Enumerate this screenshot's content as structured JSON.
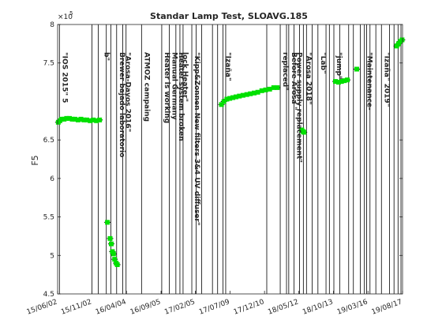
{
  "chart_data": {
    "type": "scatter",
    "title": "Standar Lamp Test, SLOAVG.185",
    "ylabel": "F5",
    "xlabel": "",
    "y_exponent_label": "×10",
    "y_exponent_power": "5",
    "ylim": [
      4.5,
      8.0
    ],
    "xlim": [
      "2015-06-02",
      "2019-08-17"
    ],
    "yticks": [
      {
        "value": 4.5,
        "label": "4.5"
      },
      {
        "value": 5.0,
        "label": "5"
      },
      {
        "value": 5.5,
        "label": "5.5"
      },
      {
        "value": 6.0,
        "label": "6"
      },
      {
        "value": 6.5,
        "label": "6.5"
      },
      {
        "value": 7.5,
        "label": "7.5"
      },
      {
        "value": 8.0,
        "label": "8"
      }
    ],
    "xticks": [
      {
        "date": "2015-06-02",
        "label": "15/06/02"
      },
      {
        "date": "2015-11-02",
        "label": "15/11/02"
      },
      {
        "date": "2016-04-04",
        "label": "16/04/04"
      },
      {
        "date": "2016-09-05",
        "label": "16/09/05"
      },
      {
        "date": "2017-02-05",
        "label": "17/02/05"
      },
      {
        "date": "2017-07-09",
        "label": "17/07/09"
      },
      {
        "date": "2017-12-10",
        "label": "17/12/10"
      },
      {
        "date": "2018-05-12",
        "label": "18/05/12"
      },
      {
        "date": "2018-10-13",
        "label": "18/10/13"
      },
      {
        "date": "2019-03-16",
        "label": "19/03/16"
      },
      {
        "date": "2019-08-17",
        "label": "19/08/17"
      }
    ],
    "grid": false,
    "series": [
      {
        "color": "#00e000",
        "error_color": "#000000",
        "points": [
          {
            "x": "2015-06-05",
            "y": 6.73
          },
          {
            "x": "2015-06-12",
            "y": 6.75
          },
          {
            "x": "2015-06-20",
            "y": 6.77
          },
          {
            "x": "2015-07-01",
            "y": 6.77
          },
          {
            "x": "2015-07-12",
            "y": 6.78
          },
          {
            "x": "2015-07-25",
            "y": 6.78
          },
          {
            "x": "2015-08-06",
            "y": 6.77
          },
          {
            "x": "2015-08-18",
            "y": 6.77
          },
          {
            "x": "2015-09-01",
            "y": 6.76
          },
          {
            "x": "2015-09-14",
            "y": 6.77
          },
          {
            "x": "2015-09-27",
            "y": 6.76
          },
          {
            "x": "2015-10-10",
            "y": 6.76
          },
          {
            "x": "2015-10-25",
            "y": 6.75
          },
          {
            "x": "2015-11-08",
            "y": 6.76
          },
          {
            "x": "2015-11-22",
            "y": 6.75
          },
          {
            "x": "2015-12-06",
            "y": 6.76
          },
          {
            "x": "2016-01-10",
            "y": 5.43
          },
          {
            "x": "2016-01-22",
            "y": 5.22
          },
          {
            "x": "2016-01-27",
            "y": 5.15
          },
          {
            "x": "2016-02-01",
            "y": 5.05
          },
          {
            "x": "2016-02-06",
            "y": 5.02
          },
          {
            "x": "2016-02-11",
            "y": 4.95
          },
          {
            "x": "2016-02-18",
            "y": 4.9
          },
          {
            "x": "2016-02-23",
            "y": 4.88
          },
          {
            "x": "2017-06-01",
            "y": 6.96
          },
          {
            "x": "2017-06-12",
            "y": 7.0
          },
          {
            "x": "2017-06-25",
            "y": 7.03
          },
          {
            "x": "2017-07-08",
            "y": 7.04
          },
          {
            "x": "2017-07-22",
            "y": 7.05
          },
          {
            "x": "2017-08-05",
            "y": 7.06
          },
          {
            "x": "2017-08-20",
            "y": 7.07
          },
          {
            "x": "2017-09-05",
            "y": 7.08
          },
          {
            "x": "2017-09-22",
            "y": 7.09
          },
          {
            "x": "2017-10-08",
            "y": 7.1
          },
          {
            "x": "2017-10-25",
            "y": 7.11
          },
          {
            "x": "2017-11-10",
            "y": 7.12
          },
          {
            "x": "2017-11-28",
            "y": 7.14
          },
          {
            "x": "2017-12-15",
            "y": 7.15
          },
          {
            "x": "2018-01-02",
            "y": 7.16
          },
          {
            "x": "2018-01-20",
            "y": 7.18
          },
          {
            "x": "2018-02-05",
            "y": 7.18
          },
          {
            "x": "2018-05-25",
            "y": 6.63
          },
          {
            "x": "2018-05-30",
            "y": 6.61
          },
          {
            "x": "2018-06-04",
            "y": 6.6
          },
          {
            "x": "2018-10-22",
            "y": 7.26
          },
          {
            "x": "2018-11-05",
            "y": 7.25
          },
          {
            "x": "2018-11-18",
            "y": 7.26
          },
          {
            "x": "2018-12-01",
            "y": 7.27
          },
          {
            "x": "2018-12-14",
            "y": 7.28
          },
          {
            "x": "2019-01-25",
            "y": 7.42
          },
          {
            "x": "2019-07-22",
            "y": 7.72
          },
          {
            "x": "2019-07-30",
            "y": 7.75
          },
          {
            "x": "2019-08-07",
            "y": 7.78
          },
          {
            "x": "2019-08-15",
            "y": 7.8
          }
        ]
      }
    ],
    "event_lines": [
      "2015-06-10",
      "2015-11-02",
      "2015-11-30",
      "2016-01-05",
      "2016-01-25",
      "2016-02-20",
      "2016-03-18",
      "2016-04-02",
      "2016-06-10",
      "2016-09-08",
      "2016-10-12",
      "2016-11-10",
      "2016-11-28",
      "2016-12-12",
      "2017-01-20",
      "2017-02-08",
      "2017-03-05",
      "2017-04-22",
      "2017-05-15",
      "2017-06-08",
      "2017-06-20",
      "2017-12-20",
      "2018-02-18",
      "2018-03-18",
      "2018-03-28",
      "2018-04-20",
      "2018-05-15",
      "2018-06-01",
      "2018-06-15",
      "2018-07-10",
      "2018-08-05",
      "2018-09-10",
      "2018-09-25",
      "2018-10-15",
      "2018-11-10",
      "2018-12-20",
      "2019-01-10",
      "2019-02-10",
      "2019-02-28",
      "2019-03-10",
      "2019-03-25",
      "2019-04-20",
      "2019-05-15",
      "2019-06-20",
      "2019-07-10",
      "2019-07-28",
      "2019-08-10"
    ],
    "annotations": [
      {
        "text": "\"IOS 2015\" 5",
        "x": "2015-06-10"
      },
      {
        "text": "b\"",
        "x": "2015-12-15"
      },
      {
        "text": "Brewer bajado laboratorio",
        "x": "2016-02-20"
      },
      {
        "text": "\"Arosa-Davos 2016\"",
        "x": "2016-03-18"
      },
      {
        "text": "ATMOZ campaing",
        "x": "2016-06-10"
      },
      {
        "text": "Heater is working",
        "x": "2016-09-08"
      },
      {
        "text": "Manual Germany",
        "x": "2016-10-12"
      },
      {
        "text": "lock Heater\"",
        "x": "2016-11-28"
      },
      {
        "text": "Heater system broken",
        "x": "2016-11-10"
      },
      {
        "text": "\"Kipp&Zonnen New filters 3&4 UV diffuser\"",
        "x": "2017-01-20"
      },
      {
        "text": "\"Izaña\"",
        "x": "2017-06-08"
      },
      {
        "text": "replaced\"",
        "x": "2018-02-18"
      },
      {
        "text": "Before Arosa \"",
        "x": "2018-03-28"
      },
      {
        "text": "Power supply replacement\"",
        "x": "2018-04-20"
      },
      {
        "text": "\"Arosa 2018\"",
        "x": "2018-06-01"
      },
      {
        "text": "\"Lab\"",
        "x": "2018-08-05"
      },
      {
        "text": "\"jump\"",
        "x": "2018-10-15"
      },
      {
        "text": "\"Maintenance-",
        "x": "2019-02-28"
      },
      {
        "text": "\"Izaña\" 2019\"",
        "x": "2019-05-15"
      }
    ]
  }
}
